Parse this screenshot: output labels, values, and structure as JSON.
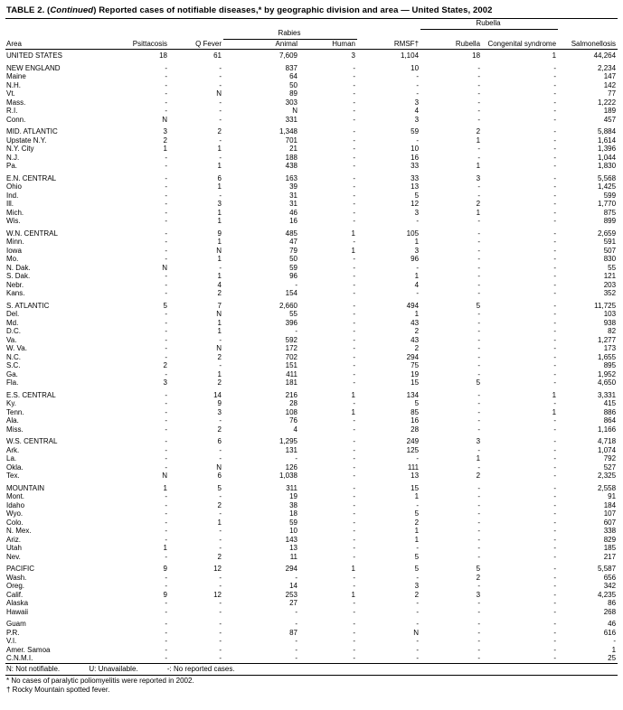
{
  "title": {
    "part1": "TABLE 2. (",
    "continued": "Continued",
    "part2": ") Reported cases of notifiable diseases,* by geographic division and area — United States, 2002"
  },
  "table": {
    "group_headers": {
      "rabies": "Rabies",
      "rubella": "Rubella"
    },
    "columns": [
      "Area",
      "Psittacosis",
      "Q Fever",
      "Animal",
      "Human",
      "RMSF†",
      "Rubella",
      "Congenital syndrome",
      "Salmonellosis"
    ],
    "groups": [
      {
        "rows": [
          [
            "UNITED STATES",
            "18",
            "61",
            "7,609",
            "3",
            "1,104",
            "18",
            "1",
            "44,264"
          ]
        ]
      },
      {
        "rows": [
          [
            "NEW ENGLAND",
            "-",
            "-",
            "837",
            "-",
            "10",
            "-",
            "-",
            "2,234"
          ],
          [
            "Maine",
            "-",
            "-",
            "64",
            "-",
            "-",
            "-",
            "-",
            "147"
          ],
          [
            "N.H.",
            "-",
            "-",
            "50",
            "-",
            "-",
            "-",
            "-",
            "142"
          ],
          [
            "Vt.",
            "-",
            "N",
            "89",
            "-",
            "-",
            "-",
            "-",
            "77"
          ],
          [
            "Mass.",
            "-",
            "-",
            "303",
            "-",
            "3",
            "-",
            "-",
            "1,222"
          ],
          [
            "R.I.",
            "-",
            "-",
            "N",
            "-",
            "4",
            "-",
            "-",
            "189"
          ],
          [
            "Conn.",
            "N",
            "-",
            "331",
            "-",
            "3",
            "-",
            "-",
            "457"
          ]
        ]
      },
      {
        "rows": [
          [
            "MID. ATLANTIC",
            "3",
            "2",
            "1,348",
            "-",
            "59",
            "2",
            "-",
            "5,884"
          ],
          [
            "Upstate N.Y.",
            "2",
            "-",
            "701",
            "-",
            "-",
            "1",
            "-",
            "1,614"
          ],
          [
            "N.Y. City",
            "1",
            "1",
            "21",
            "-",
            "10",
            "-",
            "-",
            "1,396"
          ],
          [
            "N.J.",
            "-",
            "-",
            "188",
            "-",
            "16",
            "-",
            "-",
            "1,044"
          ],
          [
            "Pa.",
            "-",
            "1",
            "438",
            "-",
            "33",
            "1",
            "-",
            "1,830"
          ]
        ]
      },
      {
        "rows": [
          [
            "E.N. CENTRAL",
            "-",
            "6",
            "163",
            "-",
            "33",
            "3",
            "-",
            "5,568"
          ],
          [
            "Ohio",
            "-",
            "1",
            "39",
            "-",
            "13",
            "-",
            "-",
            "1,425"
          ],
          [
            "Ind.",
            "-",
            "-",
            "31",
            "-",
            "5",
            "-",
            "-",
            "599"
          ],
          [
            "Ill.",
            "-",
            "3",
            "31",
            "-",
            "12",
            "2",
            "-",
            "1,770"
          ],
          [
            "Mich.",
            "-",
            "1",
            "46",
            "-",
            "3",
            "1",
            "-",
            "875"
          ],
          [
            "Wis.",
            "-",
            "1",
            "16",
            "-",
            "-",
            "-",
            "-",
            "899"
          ]
        ]
      },
      {
        "rows": [
          [
            "W.N. CENTRAL",
            "-",
            "9",
            "485",
            "1",
            "105",
            "-",
            "-",
            "2,659"
          ],
          [
            "Minn.",
            "-",
            "1",
            "47",
            "-",
            "1",
            "-",
            "-",
            "591"
          ],
          [
            "Iowa",
            "-",
            "N",
            "79",
            "1",
            "3",
            "-",
            "-",
            "507"
          ],
          [
            "Mo.",
            "-",
            "1",
            "50",
            "-",
            "96",
            "-",
            "-",
            "830"
          ],
          [
            "N. Dak.",
            "N",
            "-",
            "59",
            "-",
            "-",
            "-",
            "-",
            "55"
          ],
          [
            "S. Dak.",
            "-",
            "1",
            "96",
            "-",
            "1",
            "-",
            "-",
            "121"
          ],
          [
            "Nebr.",
            "-",
            "4",
            "-",
            "-",
            "4",
            "-",
            "-",
            "203"
          ],
          [
            "Kans.",
            "-",
            "2",
            "154",
            "-",
            "-",
            "-",
            "-",
            "352"
          ]
        ]
      },
      {
        "rows": [
          [
            "S. ATLANTIC",
            "5",
            "7",
            "2,660",
            "-",
            "494",
            "5",
            "-",
            "11,725"
          ],
          [
            "Del.",
            "-",
            "N",
            "55",
            "-",
            "1",
            "-",
            "-",
            "103"
          ],
          [
            "Md.",
            "-",
            "1",
            "396",
            "-",
            "43",
            "-",
            "-",
            "938"
          ],
          [
            "D.C.",
            "-",
            "1",
            "-",
            "-",
            "2",
            "-",
            "-",
            "82"
          ],
          [
            "Va.",
            "-",
            "-",
            "592",
            "-",
            "43",
            "-",
            "-",
            "1,277"
          ],
          [
            "W. Va.",
            "-",
            "N",
            "172",
            "-",
            "2",
            "-",
            "-",
            "173"
          ],
          [
            "N.C.",
            "-",
            "2",
            "702",
            "-",
            "294",
            "-",
            "-",
            "1,655"
          ],
          [
            "S.C.",
            "2",
            "-",
            "151",
            "-",
            "75",
            "-",
            "-",
            "895"
          ],
          [
            "Ga.",
            "-",
            "1",
            "411",
            "-",
            "19",
            "-",
            "-",
            "1,952"
          ],
          [
            "Fla.",
            "3",
            "2",
            "181",
            "-",
            "15",
            "5",
            "-",
            "4,650"
          ]
        ]
      },
      {
        "rows": [
          [
            "E.S. CENTRAL",
            "-",
            "14",
            "216",
            "1",
            "134",
            "-",
            "1",
            "3,331"
          ],
          [
            "Ky.",
            "-",
            "9",
            "28",
            "-",
            "5",
            "-",
            "-",
            "415"
          ],
          [
            "Tenn.",
            "-",
            "3",
            "108",
            "1",
            "85",
            "-",
            "1",
            "886"
          ],
          [
            "Ala.",
            "-",
            "-",
            "76",
            "-",
            "16",
            "-",
            "-",
            "864"
          ],
          [
            "Miss.",
            "-",
            "2",
            "4",
            "-",
            "28",
            "-",
            "-",
            "1,166"
          ]
        ]
      },
      {
        "rows": [
          [
            "W.S. CENTRAL",
            "-",
            "6",
            "1,295",
            "-",
            "249",
            "3",
            "-",
            "4,718"
          ],
          [
            "Ark.",
            "-",
            "-",
            "131",
            "-",
            "125",
            "-",
            "-",
            "1,074"
          ],
          [
            "La.",
            "-",
            "-",
            "-",
            "-",
            "-",
            "1",
            "-",
            "792"
          ],
          [
            "Okla.",
            "-",
            "N",
            "126",
            "-",
            "111",
            "-",
            "-",
            "527"
          ],
          [
            "Tex.",
            "N",
            "6",
            "1,038",
            "-",
            "13",
            "2",
            "-",
            "2,325"
          ]
        ]
      },
      {
        "rows": [
          [
            "MOUNTAIN",
            "1",
            "5",
            "311",
            "-",
            "15",
            "-",
            "-",
            "2,558"
          ],
          [
            "Mont.",
            "-",
            "-",
            "19",
            "-",
            "1",
            "-",
            "-",
            "91"
          ],
          [
            "Idaho",
            "-",
            "2",
            "38",
            "-",
            "-",
            "-",
            "-",
            "184"
          ],
          [
            "Wyo.",
            "-",
            "-",
            "18",
            "-",
            "5",
            "-",
            "-",
            "107"
          ],
          [
            "Colo.",
            "-",
            "1",
            "59",
            "-",
            "2",
            "-",
            "-",
            "607"
          ],
          [
            "N. Mex.",
            "-",
            "-",
            "10",
            "-",
            "1",
            "-",
            "-",
            "338"
          ],
          [
            "Ariz.",
            "-",
            "-",
            "143",
            "-",
            "1",
            "-",
            "-",
            "829"
          ],
          [
            "Utah",
            "1",
            "-",
            "13",
            "-",
            "-",
            "-",
            "-",
            "185"
          ],
          [
            "Nev.",
            "-",
            "2",
            "11",
            "-",
            "5",
            "-",
            "-",
            "217"
          ]
        ]
      },
      {
        "rows": [
          [
            "PACIFIC",
            "9",
            "12",
            "294",
            "1",
            "5",
            "5",
            "-",
            "5,587"
          ],
          [
            "Wash.",
            "-",
            "-",
            "-",
            "-",
            "-",
            "2",
            "-",
            "656"
          ],
          [
            "Oreg.",
            "-",
            "-",
            "14",
            "-",
            "3",
            "-",
            "-",
            "342"
          ],
          [
            "Calif.",
            "9",
            "12",
            "253",
            "1",
            "2",
            "3",
            "-",
            "4,235"
          ],
          [
            "Alaska",
            "-",
            "-",
            "27",
            "-",
            "-",
            "-",
            "-",
            "86"
          ],
          [
            "Hawaii",
            "-",
            "-",
            "-",
            "-",
            "-",
            "-",
            "-",
            "268"
          ]
        ]
      },
      {
        "rows": [
          [
            "Guam",
            "-",
            "-",
            "-",
            "-",
            "-",
            "-",
            "-",
            "46"
          ],
          [
            "P.R.",
            "-",
            "-",
            "87",
            "-",
            "N",
            "-",
            "-",
            "616"
          ],
          [
            "V.I.",
            "-",
            "-",
            "-",
            "-",
            "-",
            "-",
            "-",
            "-"
          ],
          [
            "Amer. Samoa",
            "-",
            "-",
            "-",
            "-",
            "-",
            "-",
            "-",
            "1"
          ],
          [
            "C.N.M.I.",
            "-",
            "-",
            "-",
            "-",
            "-",
            "-",
            "-",
            "25"
          ]
        ]
      }
    ]
  },
  "footnotes": {
    "legend": [
      "N: Not notifiable.",
      "U: Unavailable.",
      "-: No reported cases."
    ],
    "notes": [
      "* No cases of paralytic poliomyelitis were reported in 2002.",
      "† Rocky Mountain spotted fever."
    ]
  }
}
